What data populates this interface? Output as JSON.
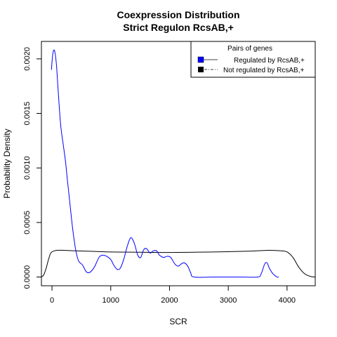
{
  "chart_data": {
    "type": "line",
    "title": "Coexpression Distribution",
    "subtitle": "Strict Regulon RcsAB,+",
    "xlabel": "SCR",
    "ylabel": "Probability Density",
    "xlim": [
      -180,
      4480
    ],
    "ylim": [
      -8e-05,
      0.00216
    ],
    "x_ticks": [
      {
        "value": 0,
        "label": "0"
      },
      {
        "value": 1000,
        "label": "1000"
      },
      {
        "value": 2000,
        "label": "2000"
      },
      {
        "value": 3000,
        "label": "3000"
      },
      {
        "value": 4000,
        "label": "4000"
      }
    ],
    "y_ticks": [
      {
        "value": 0.0,
        "label": "0.0000"
      },
      {
        "value": 0.0005,
        "label": "0.0005"
      },
      {
        "value": 0.001,
        "label": "0.0010"
      },
      {
        "value": 0.0015,
        "label": "0.0015"
      },
      {
        "value": 0.002,
        "label": "0.0020"
      }
    ],
    "legend": {
      "title": "Pairs of genes",
      "position": "top-right"
    },
    "series": [
      {
        "name": "Regulated by  RcsAB,+",
        "color": "#0000ff",
        "points": [
          [
            -10,
            0.0019
          ],
          [
            10,
            0.00203
          ],
          [
            30,
            0.00208
          ],
          [
            50,
            0.00206
          ],
          [
            75,
            0.00195
          ],
          [
            100,
            0.00175
          ],
          [
            125,
            0.00155
          ],
          [
            150,
            0.00138
          ],
          [
            200,
            0.00118
          ],
          [
            230,
            0.00106
          ],
          [
            260,
            0.0009
          ],
          [
            300,
            0.0007
          ],
          [
            350,
            0.00045
          ],
          [
            400,
            0.00026
          ],
          [
            450,
            0.00015
          ],
          [
            520,
            0.00011
          ],
          [
            580,
            5e-05
          ],
          [
            630,
            4e-05
          ],
          [
            680,
            6e-05
          ],
          [
            730,
            0.0001
          ],
          [
            800,
            0.00018
          ],
          [
            860,
            0.0002
          ],
          [
            930,
            0.00019
          ],
          [
            1000,
            0.00016
          ],
          [
            1050,
            0.00011
          ],
          [
            1110,
            7e-05
          ],
          [
            1160,
            8e-05
          ],
          [
            1220,
            0.00016
          ],
          [
            1280,
            0.00028
          ],
          [
            1340,
            0.00036
          ],
          [
            1400,
            0.00031
          ],
          [
            1460,
            0.0002
          ],
          [
            1510,
            0.00018
          ],
          [
            1560,
            0.00025
          ],
          [
            1610,
            0.00026
          ],
          [
            1670,
            0.00022
          ],
          [
            1720,
            0.00024
          ],
          [
            1780,
            0.00024
          ],
          [
            1830,
            0.0002
          ],
          [
            1900,
            0.00018
          ],
          [
            1960,
            0.00019
          ],
          [
            2020,
            0.00018
          ],
          [
            2090,
            0.00012
          ],
          [
            2150,
            0.0001
          ],
          [
            2200,
            0.00012
          ],
          [
            2250,
            0.00013
          ],
          [
            2310,
            0.0001
          ],
          [
            2360,
            4e-05
          ],
          [
            2420,
            0.0
          ],
          [
            2800,
            0.0
          ],
          [
            3200,
            0.0
          ],
          [
            3500,
            0.0
          ],
          [
            3560,
            3e-05
          ],
          [
            3620,
            0.00012
          ],
          [
            3660,
            0.00013
          ],
          [
            3700,
            8e-05
          ],
          [
            3760,
            3e-05
          ],
          [
            3830,
            0.0
          ],
          [
            3860,
            0.0
          ]
        ]
      },
      {
        "name": "Not regulated by  RcsAB,+",
        "color": "#000000",
        "points": [
          [
            -180,
            0.0
          ],
          [
            -140,
            2e-05
          ],
          [
            -100,
            8e-05
          ],
          [
            -60,
            0.00016
          ],
          [
            -20,
            0.00022
          ],
          [
            40,
            0.00024
          ],
          [
            100,
            0.000245
          ],
          [
            200,
            0.000245
          ],
          [
            400,
            0.00024
          ],
          [
            700,
            0.000235
          ],
          [
            1000,
            0.00023
          ],
          [
            1300,
            0.000228
          ],
          [
            1700,
            0.000226
          ],
          [
            2000,
            0.000225
          ],
          [
            2500,
            0.000228
          ],
          [
            3000,
            0.000232
          ],
          [
            3400,
            0.000238
          ],
          [
            3700,
            0.000245
          ],
          [
            3900,
            0.00024
          ],
          [
            4000,
            0.00023
          ],
          [
            4100,
            0.00018
          ],
          [
            4200,
            9e-05
          ],
          [
            4300,
            3e-05
          ],
          [
            4400,
            5e-06
          ],
          [
            4480,
            0.0
          ]
        ]
      }
    ]
  }
}
